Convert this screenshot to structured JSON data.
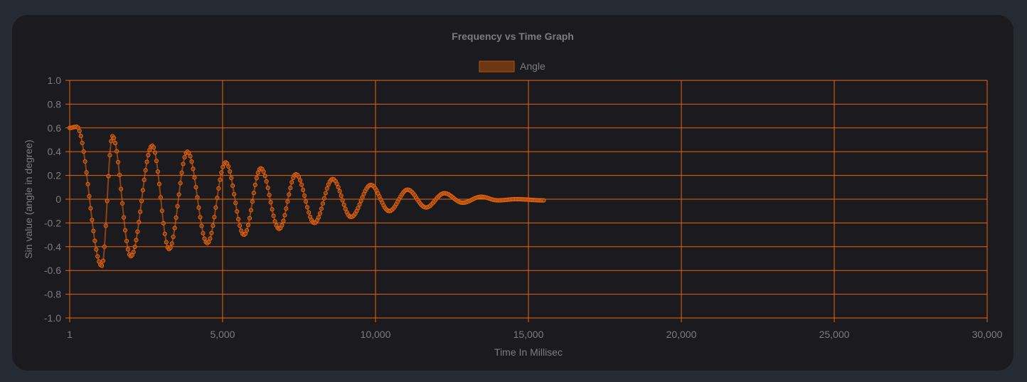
{
  "chart_data": {
    "type": "scatter",
    "title": "Frequency vs Time Graph",
    "xlabel": "Time In Millisec",
    "ylabel": "Sin value (angle in degree)",
    "xlim": [
      1,
      30000
    ],
    "ylim": [
      -1.0,
      1.0
    ],
    "grid": true,
    "legend_position": "top",
    "x_ticks": [
      {
        "value": 1,
        "label": "1"
      },
      {
        "value": 5000,
        "label": "5,000"
      },
      {
        "value": 10000,
        "label": "10,000"
      },
      {
        "value": 15000,
        "label": "15,000"
      },
      {
        "value": 20000,
        "label": "20,000"
      },
      {
        "value": 25000,
        "label": "25,000"
      },
      {
        "value": 30000,
        "label": "30,000"
      }
    ],
    "y_ticks": [
      {
        "value": 1.0,
        "label": "1.0"
      },
      {
        "value": 0.8,
        "label": "0.8"
      },
      {
        "value": 0.6,
        "label": "0.6"
      },
      {
        "value": 0.4,
        "label": "0.4"
      },
      {
        "value": 0.2,
        "label": "0.2"
      },
      {
        "value": 0,
        "label": "0"
      },
      {
        "value": -0.2,
        "label": "-0.2"
      },
      {
        "value": -0.4,
        "label": "-0.4"
      },
      {
        "value": -0.6,
        "label": "-0.6"
      },
      {
        "value": -0.8,
        "label": "-0.8"
      },
      {
        "value": -1.0,
        "label": "-1.0"
      }
    ],
    "series": [
      {
        "name": "Angle",
        "color": "#e8650f",
        "legend_fill": "#6b3712",
        "x": [
          1,
          230,
          1050,
          1400,
          2000,
          2700,
          3250,
          3850,
          4500,
          5100,
          5700,
          6250,
          6850,
          7400,
          8000,
          8600,
          9200,
          9850,
          10450,
          11050,
          11650,
          12250,
          12850,
          13450,
          14000,
          14600,
          15500
        ],
        "y": [
          0.6,
          0.61,
          -0.56,
          0.53,
          -0.48,
          0.45,
          -0.42,
          0.4,
          -0.37,
          0.31,
          -0.3,
          0.26,
          -0.25,
          0.21,
          -0.2,
          0.17,
          -0.15,
          0.12,
          -0.1,
          0.08,
          -0.07,
          0.05,
          -0.03,
          0.02,
          -0.01,
          0.0,
          -0.01
        ]
      }
    ]
  }
}
